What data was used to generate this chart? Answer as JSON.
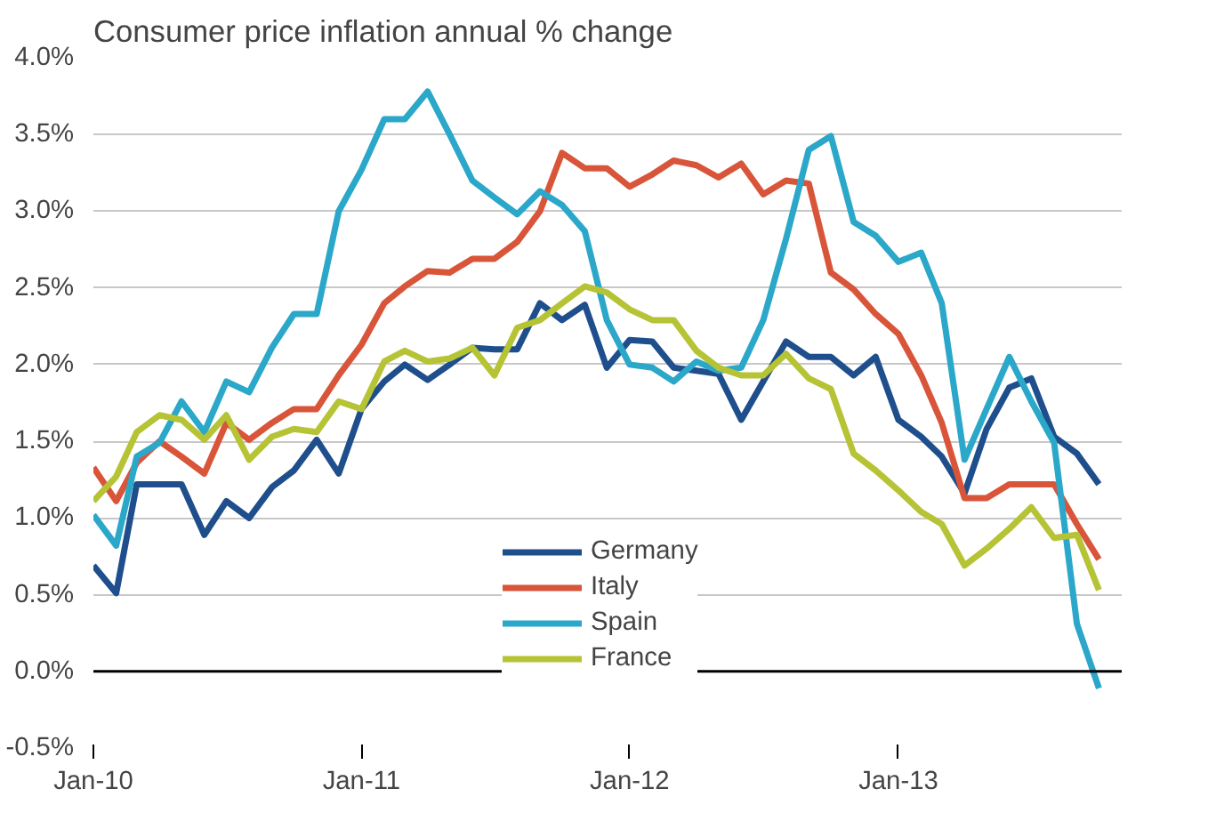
{
  "chart_data": {
    "type": "line",
    "title": "Consumer price inflation annual % change",
    "x": [
      "2010-01",
      "2010-02",
      "2010-03",
      "2010-04",
      "2010-05",
      "2010-06",
      "2010-07",
      "2010-08",
      "2010-09",
      "2010-10",
      "2010-11",
      "2010-12",
      "2011-01",
      "2011-02",
      "2011-03",
      "2011-04",
      "2011-05",
      "2011-06",
      "2011-07",
      "2011-08",
      "2011-09",
      "2011-10",
      "2011-11",
      "2011-12",
      "2012-01",
      "2012-02",
      "2012-03",
      "2012-04",
      "2012-05",
      "2012-06",
      "2012-07",
      "2012-08",
      "2012-09",
      "2012-10",
      "2012-11",
      "2012-12",
      "2013-01",
      "2013-02",
      "2013-03",
      "2013-04",
      "2013-05",
      "2013-06",
      "2013-07",
      "2013-08",
      "2013-09",
      "2013-10"
    ],
    "series": [
      {
        "name": "Germany",
        "color": "#1f4e8c",
        "values": [
          0.69,
          0.51,
          1.22,
          1.22,
          1.22,
          0.89,
          1.11,
          1.0,
          1.2,
          1.31,
          1.51,
          1.29,
          1.71,
          1.89,
          2.0,
          1.9,
          2.0,
          2.11,
          2.1,
          2.1,
          2.4,
          2.29,
          2.39,
          1.98,
          2.16,
          2.15,
          1.98,
          1.96,
          1.94,
          1.64,
          1.89,
          2.15,
          2.05,
          2.05,
          1.93,
          2.05,
          1.64,
          1.53,
          1.4,
          1.16,
          1.58,
          1.85,
          1.91,
          1.53,
          1.42,
          1.22
        ]
      },
      {
        "name": "Italy",
        "color": "#d9553a",
        "values": [
          1.33,
          1.11,
          1.36,
          1.5,
          1.4,
          1.29,
          1.62,
          1.51,
          1.62,
          1.71,
          1.71,
          1.93,
          2.13,
          2.4,
          2.51,
          2.61,
          2.6,
          2.69,
          2.69,
          2.8,
          3.0,
          3.38,
          3.28,
          3.28,
          3.16,
          3.24,
          3.33,
          3.3,
          3.22,
          3.31,
          3.11,
          3.2,
          3.18,
          2.6,
          2.49,
          2.33,
          2.2,
          1.93,
          1.62,
          1.13,
          1.13,
          1.22,
          1.22,
          1.22,
          0.96,
          0.73
        ]
      },
      {
        "name": "Spain",
        "color": "#2ba7c9",
        "values": [
          1.02,
          0.82,
          1.4,
          1.49,
          1.76,
          1.56,
          1.89,
          1.82,
          2.11,
          2.33,
          2.33,
          3.0,
          3.27,
          3.6,
          3.6,
          3.78,
          3.5,
          3.2,
          3.09,
          2.98,
          3.13,
          3.04,
          2.87,
          2.29,
          2.0,
          1.98,
          1.89,
          2.02,
          1.96,
          1.98,
          2.29,
          2.82,
          3.4,
          3.49,
          2.93,
          2.84,
          2.67,
          2.73,
          2.4,
          1.38,
          1.71,
          2.05,
          1.76,
          1.49,
          0.31,
          -0.11
        ]
      },
      {
        "name": "France",
        "color": "#b5c334",
        "values": [
          1.11,
          1.27,
          1.56,
          1.67,
          1.64,
          1.51,
          1.67,
          1.38,
          1.53,
          1.58,
          1.56,
          1.76,
          1.71,
          2.02,
          2.09,
          2.02,
          2.04,
          2.11,
          1.93,
          2.24,
          2.29,
          2.4,
          2.51,
          2.47,
          2.36,
          2.29,
          2.29,
          2.09,
          1.98,
          1.93,
          1.93,
          2.07,
          1.91,
          1.84,
          1.42,
          1.31,
          1.18,
          1.04,
          0.96,
          0.69,
          0.8,
          0.93,
          1.07,
          0.87,
          0.89,
          0.53
        ]
      }
    ],
    "xlim": [
      "2010-01",
      "2013-11"
    ],
    "xticks": [
      {
        "value": "2010-01",
        "label": "Jan-10"
      },
      {
        "value": "2011-01",
        "label": "Jan-11"
      },
      {
        "value": "2012-01",
        "label": "Jan-12"
      },
      {
        "value": "2013-01",
        "label": "Jan-13"
      }
    ],
    "ylim": [
      -0.5,
      4.0
    ],
    "yticks": [
      {
        "value": -0.5,
        "label": "-0.5%"
      },
      {
        "value": 0,
        "label": "0.0%"
      },
      {
        "value": 0.5,
        "label": "0.5%"
      },
      {
        "value": 1.0,
        "label": "1.0%"
      },
      {
        "value": 1.5,
        "label": "1.5%"
      },
      {
        "value": 2.0,
        "label": "2.0%"
      },
      {
        "value": 2.5,
        "label": "2.5%"
      },
      {
        "value": 3.0,
        "label": "3.0%"
      },
      {
        "value": 3.5,
        "label": "3.5%"
      },
      {
        "value": 4.0,
        "label": "4.0%"
      }
    ],
    "ref_lines": [
      {
        "axis": "y",
        "value": 0,
        "color": "#000000"
      }
    ],
    "grid": "y",
    "legend": "bottom",
    "marker": "none",
    "line_style": "solid"
  }
}
